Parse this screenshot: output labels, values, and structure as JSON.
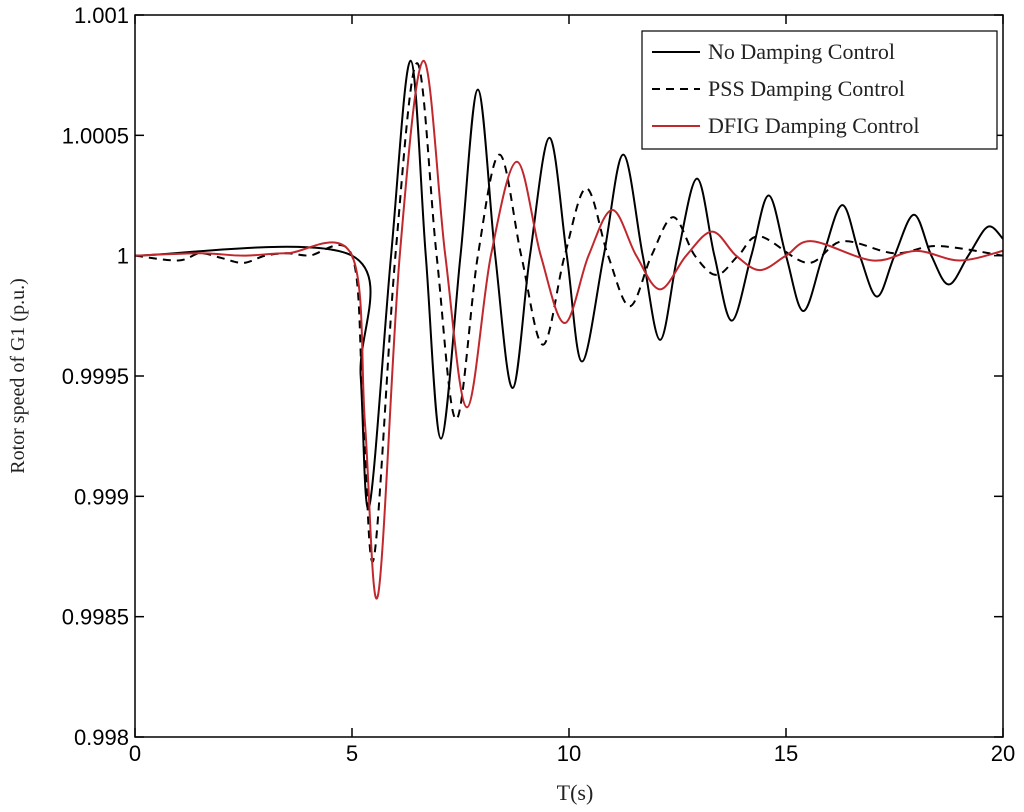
{
  "chart_data": {
    "type": "line",
    "xlabel": "T(s)",
    "ylabel": "Rotor speed of G1 (p.u.)",
    "xlim": [
      0,
      20
    ],
    "ylim": [
      0.998,
      1.001
    ],
    "xticks": [
      0,
      5,
      10,
      15,
      20
    ],
    "yticks": [
      0.998,
      0.9985,
      0.999,
      0.9995,
      1,
      1.0005,
      1.001
    ],
    "legend": "upper right",
    "series": [
      {
        "name": "No Damping Control",
        "color": "#000000",
        "linestyle": "solid",
        "x": [
          0,
          5,
          5.2,
          5.4,
          5.9,
          6.35,
          6.7,
          7.05,
          7.5,
          7.9,
          8.3,
          8.7,
          9.1,
          9.55,
          9.95,
          10.3,
          10.8,
          11.25,
          11.7,
          12.1,
          12.5,
          12.95,
          13.35,
          13.75,
          14.2,
          14.6,
          15,
          15.4,
          15.85,
          16.3,
          16.7,
          17.1,
          17.5,
          17.95,
          18.35,
          18.75,
          19.2,
          19.65,
          20
        ],
        "values": [
          1,
          1,
          0.9995,
          0.99896,
          1,
          1.00081,
          1,
          0.99924,
          1,
          1.00069,
          1,
          0.99945,
          1,
          1.00049,
          1,
          0.99956,
          1,
          1.00042,
          1,
          0.99965,
          1,
          1.00032,
          1,
          0.99973,
          1,
          1.00025,
          1,
          0.99977,
          1,
          1.00021,
          1,
          0.99983,
          1,
          1.00017,
          1,
          0.99988,
          1,
          1.00012,
          1.00007
        ]
      },
      {
        "name": "PSS Damping Control",
        "color": "#000000",
        "linestyle": "dashed",
        "x": [
          0,
          1,
          1.5,
          2,
          2.5,
          3,
          3.5,
          4,
          5,
          5.25,
          5.5,
          6,
          6.5,
          6.95,
          7.4,
          7.9,
          8.4,
          8.9,
          9.4,
          9.9,
          10.4,
          10.9,
          11.4,
          11.9,
          12.4,
          12.9,
          13.4,
          13.9,
          14.4,
          15.5,
          16.3,
          17.5,
          18.5,
          20
        ],
        "values": [
          1,
          0.99998,
          1.00001,
          0.99999,
          0.99997,
          1,
          1.00001,
          1,
          1,
          0.9994,
          0.99874,
          1,
          1.0008,
          1,
          0.99932,
          1,
          1.00042,
          1,
          0.99963,
          1,
          1.00028,
          1,
          0.99979,
          1,
          1.00016,
          1,
          0.99992,
          1,
          1.00008,
          0.99997,
          1.00006,
          1.00001,
          1.00004,
          1
        ]
      },
      {
        "name": "DFIG Damping Control",
        "color": "#c0282d",
        "linestyle": "solid",
        "x": [
          0,
          1.5,
          2.5,
          3.5,
          5,
          5.3,
          5.6,
          6.1,
          6.65,
          7.15,
          7.65,
          8.2,
          8.8,
          9.35,
          9.9,
          10.45,
          11,
          11.55,
          12.1,
          12.7,
          13.3,
          13.85,
          14.4,
          15,
          15.6,
          17,
          18,
          19,
          20
        ],
        "values": [
          1,
          1.00001,
          1,
          1.00001,
          1,
          0.9993,
          0.99859,
          1,
          1.00081,
          1,
          0.99937,
          1,
          1.00039,
          1,
          0.99972,
          1,
          1.00019,
          1,
          0.99986,
          1,
          1.0001,
          1,
          0.99994,
          1,
          1.00006,
          0.99998,
          1.00002,
          0.99998,
          1.00002
        ]
      }
    ]
  }
}
